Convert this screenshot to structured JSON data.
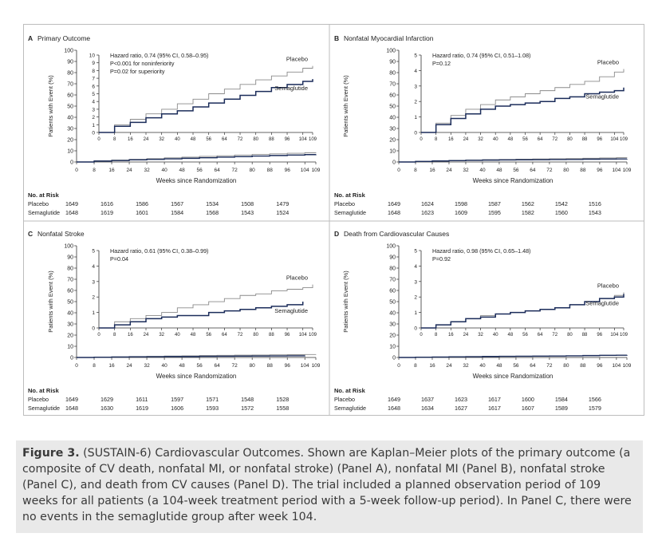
{
  "colors": {
    "placebo": "#8a8a8a",
    "semaglutide": "#1b2c5a",
    "axis": "#333333",
    "divider": "#bdbdbd",
    "caption_bg": "#e9e9e9"
  },
  "x_axis_label": "Weeks since Randomization",
  "y_axis_label": "Patients with Event (%)",
  "x_ticks": [
    "0",
    "8",
    "16",
    "24",
    "32",
    "40",
    "48",
    "56",
    "64",
    "72",
    "80",
    "88",
    "96",
    "104",
    "109"
  ],
  "y_ticks": [
    "0",
    "10",
    "20",
    "30",
    "40",
    "50",
    "60",
    "70",
    "80",
    "90",
    "100"
  ],
  "inset_x_ticks": [
    "0",
    "8",
    "16",
    "24",
    "32",
    "40",
    "48",
    "56",
    "64",
    "72",
    "80",
    "88",
    "96",
    "104",
    "109"
  ],
  "risk_heading": "No. at Risk",
  "caption": {
    "label": "Figure 3.",
    "text": " (SUSTAIN-6) Cardiovascular Outcomes. Shown are Kaplan–Meier plots of the primary outcome (a composite of CV death, nonfatal MI, or nonfatal stroke) (Panel A), nonfatal MI (Panel B), nonfatal stroke (Panel C), and death from CV causes (Panel D). The trial included a planned observation period of 109 weeks for all patients (a 104-week treatment period with a 5-week follow-up period). In Panel C, there were no events in the semaglutide group after week 104."
  },
  "chart_data": [
    {
      "type": "line",
      "letter": "A",
      "title": "Primary Outcome",
      "xlabel": "Weeks since Randomization",
      "ylabel": "Patients with Event (%)",
      "xlim": [
        0,
        109
      ],
      "ylim": [
        0,
        100
      ],
      "inset": {
        "ylim": [
          0,
          10
        ],
        "y_ticks": [
          "0",
          "1",
          "2",
          "3",
          "4",
          "5",
          "6",
          "7",
          "8",
          "9",
          "10"
        ],
        "inset_x_ticks": [
          "0",
          "8",
          "16",
          "24",
          "32",
          "40",
          "48",
          "56",
          "64",
          "72",
          "80",
          "88",
          "96",
          "104",
          "109"
        ]
      },
      "stats": [
        "Hazard ratio, 0.74 (95% CI, 0.58–0.95)",
        "P<0.001 for noninferiority",
        "P=0.02 for superiority"
      ],
      "series": [
        {
          "name": "Placebo",
          "x": [
            0,
            8,
            16,
            24,
            32,
            40,
            48,
            56,
            64,
            72,
            80,
            88,
            96,
            104,
            109
          ],
          "y": [
            0,
            1.0,
            1.7,
            2.4,
            3.0,
            3.7,
            4.3,
            5.0,
            5.6,
            6.2,
            6.8,
            7.3,
            7.8,
            8.3,
            8.6
          ]
        },
        {
          "name": "Semaglutide",
          "x": [
            0,
            8,
            16,
            24,
            32,
            40,
            48,
            56,
            64,
            72,
            80,
            88,
            96,
            104,
            109
          ],
          "y": [
            0,
            0.8,
            1.3,
            1.9,
            2.4,
            2.8,
            3.3,
            3.8,
            4.3,
            4.8,
            5.3,
            5.8,
            6.2,
            6.6,
            6.9
          ]
        }
      ],
      "at_risk": {
        "weeks": [
          "0",
          "16",
          "32",
          "48",
          "64",
          "80",
          "96"
        ],
        "rows": [
          {
            "label": "Placebo",
            "values": [
              "1649",
              "1616",
              "1586",
              "1567",
              "1534",
              "1508",
              "1479"
            ]
          },
          {
            "label": "Semaglutide",
            "values": [
              "1648",
              "1619",
              "1601",
              "1584",
              "1568",
              "1543",
              "1524"
            ]
          }
        ]
      }
    },
    {
      "type": "line",
      "letter": "B",
      "title": "Nonfatal Myocardial Infarction",
      "xlabel": "Weeks since Randomization",
      "ylabel": "Patients with Event (%)",
      "xlim": [
        0,
        109
      ],
      "ylim": [
        0,
        100
      ],
      "inset": {
        "ylim": [
          0,
          5
        ],
        "y_ticks": [
          "0",
          "1",
          "2",
          "3",
          "4",
          "5"
        ],
        "inset_x_ticks": [
          "0",
          "8",
          "16",
          "24",
          "32",
          "40",
          "48",
          "56",
          "64",
          "72",
          "80",
          "88",
          "96",
          "104",
          "109"
        ]
      },
      "stats": [
        "Hazard ratio, 0.74 (95% CI, 0.51–1.08)",
        "P=0.12"
      ],
      "series": [
        {
          "name": "Placebo",
          "x": [
            0,
            8,
            16,
            24,
            32,
            40,
            48,
            56,
            64,
            72,
            80,
            88,
            96,
            104,
            109
          ],
          "y": [
            0,
            0.6,
            1.1,
            1.5,
            1.8,
            2.1,
            2.3,
            2.5,
            2.7,
            2.9,
            3.1,
            3.3,
            3.6,
            3.9,
            4.1
          ]
        },
        {
          "name": "Semaglutide",
          "x": [
            0,
            8,
            16,
            24,
            32,
            40,
            48,
            56,
            64,
            72,
            80,
            88,
            96,
            104,
            109
          ],
          "y": [
            0,
            0.5,
            0.9,
            1.2,
            1.5,
            1.7,
            1.8,
            1.9,
            2.0,
            2.2,
            2.3,
            2.5,
            2.6,
            2.7,
            2.9
          ]
        }
      ],
      "at_risk": {
        "weeks": [
          "0",
          "16",
          "32",
          "48",
          "64",
          "80",
          "96"
        ],
        "rows": [
          {
            "label": "Placebo",
            "values": [
              "1649",
              "1624",
              "1598",
              "1587",
              "1562",
              "1542",
              "1516"
            ]
          },
          {
            "label": "Semaglutide",
            "values": [
              "1648",
              "1623",
              "1609",
              "1595",
              "1582",
              "1560",
              "1543"
            ]
          }
        ]
      }
    },
    {
      "type": "line",
      "letter": "C",
      "title": "Nonfatal Stroke",
      "xlabel": "Weeks since Randomization",
      "ylabel": "Patients with Event (%)",
      "xlim": [
        0,
        109
      ],
      "ylim": [
        0,
        100
      ],
      "inset": {
        "ylim": [
          0,
          5
        ],
        "y_ticks": [
          "0",
          "1",
          "2",
          "3",
          "4",
          "5"
        ],
        "inset_x_ticks": [
          "0",
          "8",
          "16",
          "24",
          "32",
          "40",
          "48",
          "56",
          "64",
          "72",
          "80",
          "88",
          "96",
          "104",
          "109"
        ]
      },
      "stats": [
        "Hazard ratio, 0.61 (95% CI, 0.38–0.99)",
        "P=0.04"
      ],
      "series": [
        {
          "name": "Placebo",
          "x": [
            0,
            8,
            16,
            24,
            32,
            40,
            48,
            56,
            64,
            72,
            80,
            88,
            96,
            104,
            109
          ],
          "y": [
            0,
            0.4,
            0.6,
            0.8,
            1.0,
            1.3,
            1.5,
            1.7,
            1.9,
            2.1,
            2.2,
            2.4,
            2.5,
            2.6,
            2.8
          ]
        },
        {
          "name": "Semaglutide",
          "x": [
            0,
            8,
            16,
            24,
            32,
            40,
            48,
            56,
            64,
            72,
            80,
            88,
            96,
            104
          ],
          "y": [
            0,
            0.2,
            0.4,
            0.6,
            0.7,
            0.8,
            0.8,
            1.0,
            1.1,
            1.2,
            1.3,
            1.4,
            1.5,
            1.7
          ]
        }
      ],
      "at_risk": {
        "weeks": [
          "0",
          "16",
          "32",
          "48",
          "64",
          "80",
          "96"
        ],
        "rows": [
          {
            "label": "Placebo",
            "values": [
              "1649",
              "1629",
              "1611",
              "1597",
              "1571",
              "1548",
              "1528"
            ]
          },
          {
            "label": "Semaglutide",
            "values": [
              "1648",
              "1630",
              "1619",
              "1606",
              "1593",
              "1572",
              "1558"
            ]
          }
        ]
      }
    },
    {
      "type": "line",
      "letter": "D",
      "title": "Death from Cardiovascular Causes",
      "xlabel": "Weeks since Randomization",
      "ylabel": "Patients with Event (%)",
      "xlim": [
        0,
        109
      ],
      "ylim": [
        0,
        100
      ],
      "inset": {
        "ylim": [
          0,
          5
        ],
        "y_ticks": [
          "0",
          "1",
          "2",
          "3",
          "4",
          "5"
        ],
        "inset_x_ticks": [
          "0",
          "8",
          "16",
          "24",
          "32",
          "40",
          "48",
          "56",
          "64",
          "72",
          "80",
          "88",
          "96",
          "104",
          "109"
        ]
      },
      "stats": [
        "Hazard ratio, 0.98 (95% CI, 0.65–1.48)",
        "P=0.92"
      ],
      "series": [
        {
          "name": "Placebo",
          "x": [
            0,
            8,
            16,
            24,
            32,
            40,
            48,
            56,
            64,
            72,
            80,
            88,
            96,
            104,
            109
          ],
          "y": [
            0,
            0.2,
            0.4,
            0.6,
            0.8,
            0.9,
            1.0,
            1.1,
            1.2,
            1.3,
            1.5,
            1.7,
            1.9,
            2.1,
            2.3
          ]
        },
        {
          "name": "Semaglutide",
          "x": [
            0,
            8,
            16,
            24,
            32,
            40,
            48,
            56,
            64,
            72,
            80,
            88,
            96,
            104,
            109
          ],
          "y": [
            0,
            0.2,
            0.4,
            0.6,
            0.7,
            0.9,
            1.0,
            1.1,
            1.2,
            1.3,
            1.5,
            1.7,
            1.9,
            2.0,
            2.2
          ]
        }
      ],
      "at_risk": {
        "weeks": [
          "0",
          "16",
          "32",
          "48",
          "64",
          "80",
          "96"
        ],
        "rows": [
          {
            "label": "Placebo",
            "values": [
              "1649",
              "1637",
              "1623",
              "1617",
              "1600",
              "1584",
              "1566"
            ]
          },
          {
            "label": "Semaglutide",
            "values": [
              "1648",
              "1634",
              "1627",
              "1617",
              "1607",
              "1589",
              "1579"
            ]
          }
        ]
      }
    }
  ]
}
